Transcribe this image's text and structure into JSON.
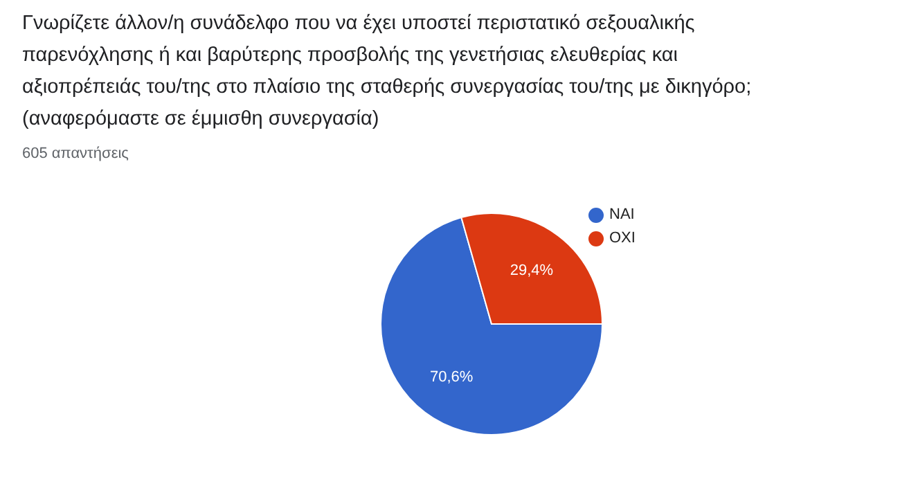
{
  "chart_data": {
    "type": "pie",
    "title": "Γνωρίζετε άλλον/η συνάδελφο που να έχει υποστεί περιστατικό σεξουαλικής παρενόχλησης ή και βαρύτερης προσβολής της γενετήσιας ελευθερίας και αξιοπρέπειάς του/της στο πλαίσιο της σταθερής συνεργασίας του/της με δικηγόρο;(αναφερόμαστε σε έμμισθη συνεργασία)",
    "subtitle": "605 απαντήσεις",
    "categories": [
      "ΝΑΙ",
      "ΟΧΙ"
    ],
    "values": [
      70.6,
      29.4
    ],
    "colors": [
      "#3366cc",
      "#dc3912"
    ],
    "value_labels": [
      "70,6%",
      "29,4%"
    ],
    "legend": "top right"
  }
}
